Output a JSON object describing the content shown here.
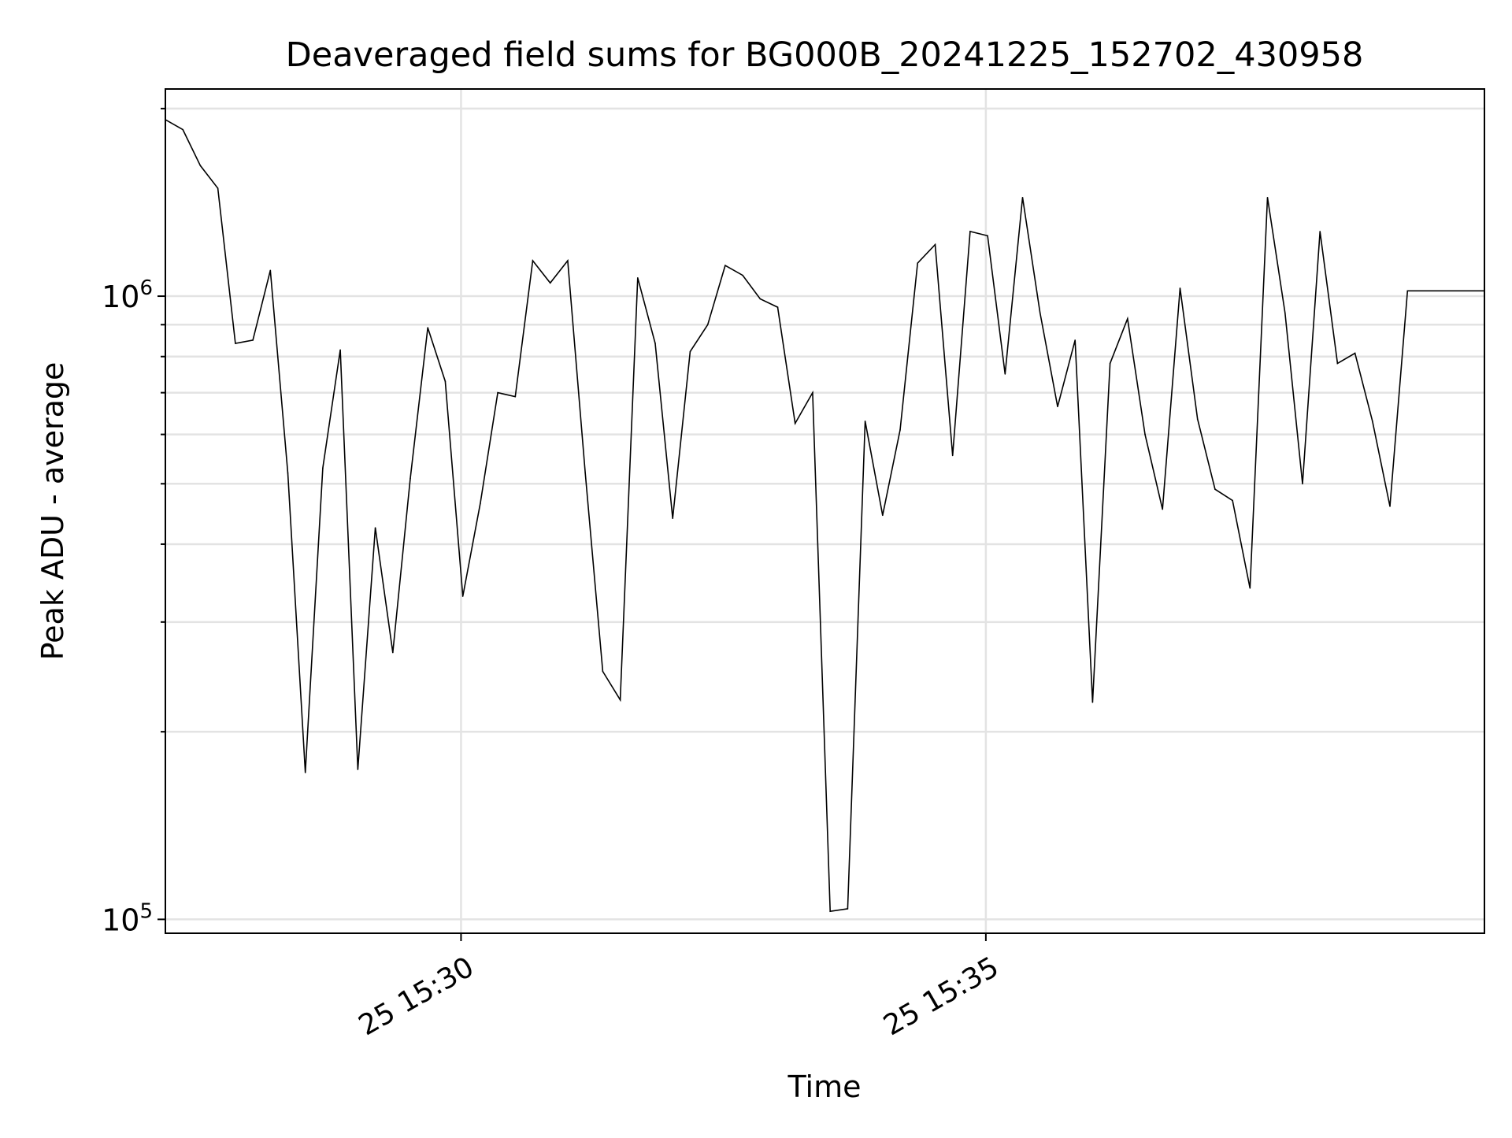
{
  "chart_data": {
    "type": "line",
    "title": "Deaveraged field sums for BG000B_20241225_152702_430958",
    "xlabel": "Time",
    "ylabel": "Peak ADU - average",
    "yscale": "log",
    "ylim": [
      95000,
      2150000
    ],
    "xlim": [
      "2024-12-25 15:27:11",
      "2024-12-25 15:39:45"
    ],
    "x_ticks": [
      {
        "value": "2024-12-25 15:30:00",
        "label": "25 15:30"
      },
      {
        "value": "2024-12-25 15:35:00",
        "label": "25 15:35"
      }
    ],
    "y_ticks": [
      {
        "value": 100000,
        "label_base": "10",
        "label_exp": "5"
      },
      {
        "value": 1000000,
        "label_base": "10",
        "label_exp": "6"
      }
    ],
    "grid": true,
    "legend": "none",
    "line_color": "#000000",
    "x": [
      "2024-12-25 15:27:11",
      "2024-12-25 15:27:21",
      "2024-12-25 15:27:31",
      "2024-12-25 15:27:41",
      "2024-12-25 15:27:51",
      "2024-12-25 15:28:01",
      "2024-12-25 15:28:11",
      "2024-12-25 15:28:21",
      "2024-12-25 15:28:31",
      "2024-12-25 15:28:41",
      "2024-12-25 15:28:51",
      "2024-12-25 15:29:01",
      "2024-12-25 15:29:11",
      "2024-12-25 15:29:21",
      "2024-12-25 15:29:31",
      "2024-12-25 15:29:41",
      "2024-12-25 15:29:51",
      "2024-12-25 15:30:01",
      "2024-12-25 15:30:11",
      "2024-12-25 15:30:21",
      "2024-12-25 15:30:31",
      "2024-12-25 15:30:41",
      "2024-12-25 15:30:51",
      "2024-12-25 15:31:01",
      "2024-12-25 15:31:11",
      "2024-12-25 15:31:21",
      "2024-12-25 15:31:31",
      "2024-12-25 15:31:41",
      "2024-12-25 15:31:51",
      "2024-12-25 15:32:01",
      "2024-12-25 15:32:11",
      "2024-12-25 15:32:21",
      "2024-12-25 15:32:31",
      "2024-12-25 15:32:41",
      "2024-12-25 15:32:51",
      "2024-12-25 15:33:01",
      "2024-12-25 15:33:11",
      "2024-12-25 15:33:21",
      "2024-12-25 15:33:31",
      "2024-12-25 15:33:41",
      "2024-12-25 15:33:51",
      "2024-12-25 15:34:01",
      "2024-12-25 15:34:11",
      "2024-12-25 15:34:21",
      "2024-12-25 15:34:31",
      "2024-12-25 15:34:41",
      "2024-12-25 15:34:51",
      "2024-12-25 15:35:01",
      "2024-12-25 15:35:11",
      "2024-12-25 15:35:21",
      "2024-12-25 15:35:31",
      "2024-12-25 15:35:41",
      "2024-12-25 15:35:51",
      "2024-12-25 15:36:01",
      "2024-12-25 15:36:11",
      "2024-12-25 15:36:21",
      "2024-12-25 15:36:31",
      "2024-12-25 15:36:41",
      "2024-12-25 15:36:51",
      "2024-12-25 15:37:01",
      "2024-12-25 15:37:11",
      "2024-12-25 15:37:21",
      "2024-12-25 15:37:31",
      "2024-12-25 15:37:41",
      "2024-12-25 15:37:51",
      "2024-12-25 15:38:01",
      "2024-12-25 15:38:11",
      "2024-12-25 15:38:21",
      "2024-12-25 15:38:31",
      "2024-12-25 15:38:41",
      "2024-12-25 15:38:51",
      "2024-12-25 15:39:01",
      "2024-12-25 15:39:11",
      "2024-12-25 15:39:45"
    ],
    "y": [
      1920000,
      1850000,
      1620000,
      1490000,
      840000,
      850000,
      1100000,
      520000,
      172000,
      530000,
      820000,
      174000,
      425000,
      268000,
      510000,
      890000,
      730000,
      330000,
      465000,
      700000,
      690000,
      1140000,
      1050000,
      1140000,
      520000,
      250000,
      225000,
      1070000,
      840000,
      440000,
      815000,
      900000,
      1120000,
      1080000,
      990000,
      960000,
      625000,
      700000,
      103000,
      104000,
      630000,
      445000,
      610000,
      1130000,
      1210000,
      555000,
      1270000,
      1250000,
      750000,
      1440000,
      940000,
      665000,
      850000,
      223000,
      780000,
      920000,
      600000,
      455000,
      1030000,
      635000,
      490000,
      470000,
      340000,
      1440000,
      940000,
      500000,
      1270000,
      780000,
      810000,
      630000,
      460000,
      1020000,
      1020000,
      1020000
    ]
  }
}
